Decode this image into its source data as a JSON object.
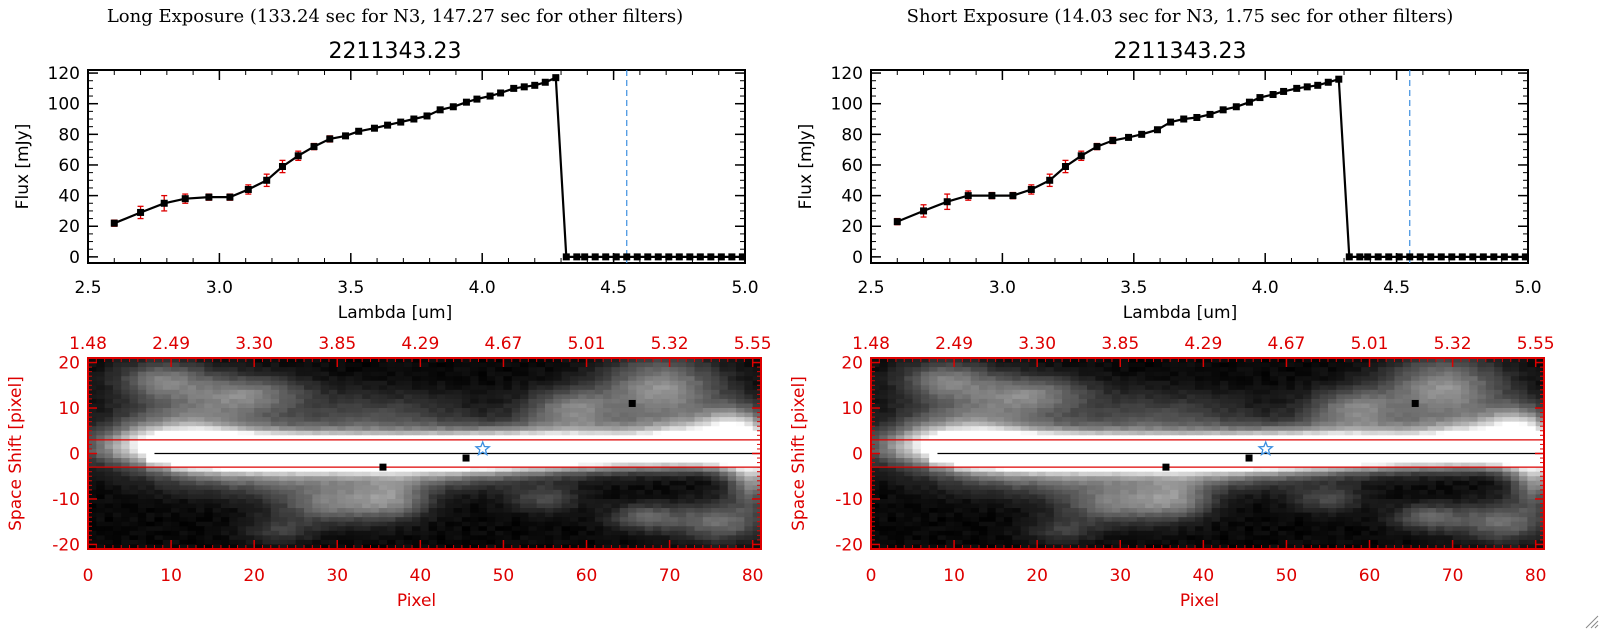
{
  "chart_data": [
    {
      "type": "line",
      "panel": "left-top",
      "header": "Long Exposure (133.24 sec for N3, 147.27 sec for other filters)",
      "title": "2211343.23",
      "xlabel": "Lambda [um]",
      "ylabel": "Flux [mJy]",
      "xlim": [
        2.5,
        5.0
      ],
      "ylim": [
        -4,
        122
      ],
      "xticks": [
        "2.5",
        "3.0",
        "3.5",
        "4.0",
        "4.5",
        "5.0"
      ],
      "xtick_values": [
        2.5,
        3.0,
        3.5,
        4.0,
        4.5,
        5.0
      ],
      "yticks": [
        "0",
        "20",
        "40",
        "60",
        "80",
        "100",
        "120"
      ],
      "ytick_values": [
        0,
        20,
        40,
        60,
        80,
        100,
        120
      ],
      "vline_x": 4.55,
      "x": [
        2.6,
        2.7,
        2.79,
        2.87,
        2.96,
        3.04,
        3.11,
        3.18,
        3.24,
        3.3,
        3.36,
        3.42,
        3.48,
        3.53,
        3.59,
        3.64,
        3.69,
        3.74,
        3.79,
        3.84,
        3.89,
        3.94,
        3.98,
        4.03,
        4.07,
        4.12,
        4.16,
        4.2,
        4.24,
        4.28,
        4.32,
        4.36,
        4.39,
        4.43,
        4.47,
        4.51,
        4.55,
        4.59,
        4.63,
        4.67,
        4.71,
        4.75,
        4.79,
        4.83,
        4.87,
        4.91,
        4.95,
        4.99
      ],
      "values": [
        22,
        29,
        35,
        38,
        39,
        39,
        44,
        50,
        59,
        66,
        72,
        77,
        79,
        82,
        84,
        86,
        88,
        90,
        92,
        96,
        98,
        101,
        103,
        105,
        107,
        110,
        111,
        112,
        114,
        117,
        0,
        0,
        0,
        0,
        0,
        0,
        0,
        0,
        0,
        0,
        0,
        0,
        0,
        0,
        0,
        0,
        0,
        0
      ],
      "errors": [
        2,
        4,
        5,
        3,
        2,
        2,
        3,
        4,
        4,
        3,
        2,
        2,
        1,
        1,
        1,
        1,
        1,
        1,
        1,
        1,
        1,
        1,
        1,
        1,
        1,
        1,
        1,
        1,
        1,
        1,
        0,
        0,
        0,
        0,
        0,
        0,
        0,
        0,
        0,
        0,
        0,
        0,
        0,
        0,
        0,
        0,
        0,
        0
      ]
    },
    {
      "type": "heatmap",
      "panel": "left-bottom",
      "xlabel": "Pixel",
      "ylabel": "Space Shift [pixel]",
      "xlim": [
        0,
        81
      ],
      "ylim": [
        -21,
        21
      ],
      "xticks": [
        "0",
        "10",
        "20",
        "30",
        "40",
        "50",
        "60",
        "70",
        "80"
      ],
      "xtick_values": [
        0,
        10,
        20,
        30,
        40,
        50,
        60,
        70,
        80
      ],
      "yticks": [
        "-20",
        "-10",
        "0",
        "10",
        "20"
      ],
      "ytick_values": [
        -20,
        -10,
        0,
        10,
        20
      ],
      "top_ticks": [
        "1.48",
        "2.49",
        "3.30",
        "3.85",
        "4.29",
        "4.67",
        "5.01",
        "5.32",
        "5.55"
      ],
      "top_tick_values": [
        0,
        10,
        20,
        30,
        40,
        50,
        60,
        70,
        80
      ],
      "band": [
        -3,
        3
      ],
      "star": [
        47.5,
        1
      ],
      "markers": [
        [
          35.5,
          -3
        ],
        [
          45.5,
          -1
        ],
        [
          65.5,
          11
        ]
      ]
    },
    {
      "type": "line",
      "panel": "right-top",
      "header": "Short Exposure (14.03 sec for N3, 1.75 sec for other filters)",
      "title": "2211343.23",
      "xlabel": "Lambda [um]",
      "ylabel": "Flux [mJy]",
      "xlim": [
        2.5,
        5.0
      ],
      "ylim": [
        -4,
        122
      ],
      "xticks": [
        "2.5",
        "3.0",
        "3.5",
        "4.0",
        "4.5",
        "5.0"
      ],
      "xtick_values": [
        2.5,
        3.0,
        3.5,
        4.0,
        4.5,
        5.0
      ],
      "yticks": [
        "0",
        "20",
        "40",
        "60",
        "80",
        "100",
        "120"
      ],
      "ytick_values": [
        0,
        20,
        40,
        60,
        80,
        100,
        120
      ],
      "vline_x": 4.55,
      "x": [
        2.6,
        2.7,
        2.79,
        2.87,
        2.96,
        3.04,
        3.11,
        3.18,
        3.24,
        3.3,
        3.36,
        3.42,
        3.48,
        3.53,
        3.59,
        3.64,
        3.69,
        3.74,
        3.79,
        3.84,
        3.89,
        3.94,
        3.98,
        4.03,
        4.07,
        4.12,
        4.16,
        4.2,
        4.24,
        4.28,
        4.32,
        4.36,
        4.39,
        4.43,
        4.47,
        4.51,
        4.55,
        4.59,
        4.63,
        4.67,
        4.71,
        4.75,
        4.79,
        4.83,
        4.87,
        4.91,
        4.95,
        4.99
      ],
      "values": [
        23,
        30,
        36,
        40,
        40,
        40,
        44,
        50,
        59,
        66,
        72,
        76,
        78,
        80,
        83,
        88,
        90,
        91,
        93,
        96,
        98,
        101,
        104,
        106,
        108,
        110,
        111,
        112,
        114,
        116,
        0,
        0,
        0,
        0,
        0,
        0,
        0,
        0,
        0,
        0,
        0,
        0,
        0,
        0,
        0,
        0,
        0,
        0
      ],
      "errors": [
        2,
        4,
        5,
        3,
        2,
        2,
        3,
        4,
        4,
        3,
        2,
        2,
        1,
        1,
        1,
        1,
        1,
        1,
        1,
        1,
        1,
        1,
        1,
        1,
        1,
        1,
        1,
        1,
        1,
        1,
        0,
        0,
        0,
        0,
        0,
        0,
        0,
        0,
        0,
        0,
        0,
        0,
        0,
        0,
        0,
        0,
        0,
        0
      ]
    },
    {
      "type": "heatmap",
      "panel": "right-bottom",
      "xlabel": "Pixel",
      "ylabel": "Space Shift [pixel]",
      "xlim": [
        0,
        81
      ],
      "ylim": [
        -21,
        21
      ],
      "xticks": [
        "0",
        "10",
        "20",
        "30",
        "40",
        "50",
        "60",
        "70",
        "80"
      ],
      "xtick_values": [
        0,
        10,
        20,
        30,
        40,
        50,
        60,
        70,
        80
      ],
      "yticks": [
        "-20",
        "-10",
        "0",
        "10",
        "20"
      ],
      "ytick_values": [
        -20,
        -10,
        0,
        10,
        20
      ],
      "top_ticks": [
        "1.48",
        "2.49",
        "3.30",
        "3.85",
        "4.29",
        "4.67",
        "5.01",
        "5.32",
        "5.55"
      ],
      "top_tick_values": [
        0,
        10,
        20,
        30,
        40,
        50,
        60,
        70,
        80
      ],
      "band": [
        -3,
        3
      ],
      "star": [
        47.5,
        1
      ],
      "markers": [
        [
          35.5,
          -3
        ],
        [
          45.5,
          -1
        ],
        [
          65.5,
          11
        ]
      ]
    }
  ],
  "colors": {
    "spectrum_line": "#000000",
    "marker": "#000000",
    "error_bar": "#dd0000",
    "vline": "#3b8fe0",
    "image_axes": "#dd0000",
    "star": "#3b8fe0",
    "background": "#ffffff"
  }
}
